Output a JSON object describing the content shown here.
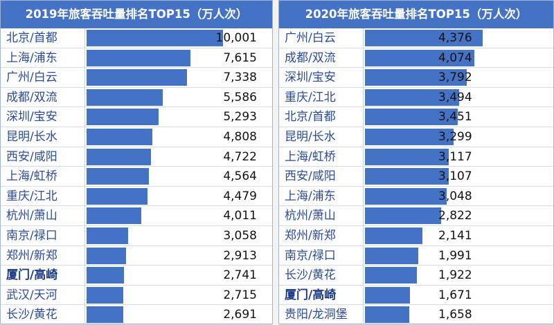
{
  "chart_data": [
    {
      "type": "bar",
      "title": "2019年旅客吞吐量排名TOP15（万人次）",
      "categories": [
        "北京/首都",
        "上海/浦东",
        "广州/白云",
        "成都/双流",
        "深圳/宝安",
        "昆明/长水",
        "西安/咸阳",
        "上海/虹桥",
        "重庆/江北",
        "杭州/萧山",
        "南京/禄口",
        "郑州/新郑",
        "厦门/高崎",
        "武汉/天河",
        "长沙/黄花"
      ],
      "values": [
        10001,
        7615,
        7338,
        5586,
        5293,
        4808,
        4722,
        4564,
        4479,
        4011,
        3058,
        2913,
        2741,
        2715,
        2691
      ],
      "value_labels": [
        "10,001",
        "7,615",
        "7,338",
        "5,586",
        "5,293",
        "4,808",
        "4,722",
        "4,564",
        "4,479",
        "4,011",
        "3,058",
        "2,913",
        "2,741",
        "2,715",
        "2,691"
      ],
      "highlighted_category": "厦门/高崎",
      "orientation": "horizontal",
      "bar_color": "#4472c4",
      "grid": false
    },
    {
      "type": "bar",
      "title": "2020年旅客吞吐量排名TOP15（万人次）",
      "categories": [
        "广州/白云",
        "成都/双流",
        "深圳/宝安",
        "重庆/江北",
        "北京/首都",
        "昆明/长水",
        "上海/虹桥",
        "西安/咸阳",
        "上海/浦东",
        "杭州/萧山",
        "郑州/新郑",
        "南京/禄口",
        "长沙/黄花",
        "厦门/高崎",
        "贵阳/龙洞堡"
      ],
      "values": [
        4376,
        4074,
        3792,
        3494,
        3451,
        3299,
        3117,
        3107,
        3048,
        2822,
        2141,
        1991,
        1922,
        1671,
        1658
      ],
      "value_labels": [
        "4,376",
        "4,074",
        "3,792",
        "3,494",
        "3,451",
        "3,299",
        "3,117",
        "3,107",
        "3,048",
        "2,822",
        "2,141",
        "1,991",
        "1,922",
        "1,671",
        "1,658"
      ],
      "highlighted_category": "厦门/高崎",
      "orientation": "horizontal",
      "bar_color": "#4472c4",
      "grid": false
    }
  ]
}
